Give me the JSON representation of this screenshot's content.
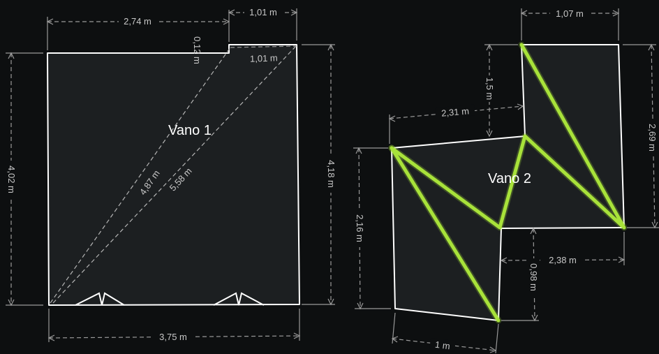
{
  "colors": {
    "background": "#0d0f10",
    "room_fill": "#1c1f21",
    "wall": "#ffffff",
    "dimension": "#9a9a9a",
    "highlight": "#a8e23a"
  },
  "rooms": [
    {
      "label": "Vano 1"
    },
    {
      "label": "Vano 2"
    }
  ],
  "dimensions": {
    "v1_top": "2,74 m",
    "v1_notch_top": "1,01 m",
    "v1_notch_height": "0,12 m",
    "v1_notch_inner": "1,01 m",
    "v1_left": "4,02 m",
    "v1_right": "4,18 m",
    "v1_bottom": "3,75 m",
    "v1_diag1": "4,87 m",
    "v1_diag2": "5,58 m",
    "v2_top": "1,07 m",
    "v2_notch_height": "1,5 m",
    "v2_notch_width": "2,31 m",
    "v2_right": "2,69 m",
    "v2_left": "2,16 m",
    "v2_lower_step_width": "2,38 m",
    "v2_lower_step_height": "0,98 m",
    "v2_bottom": "1 m"
  }
}
